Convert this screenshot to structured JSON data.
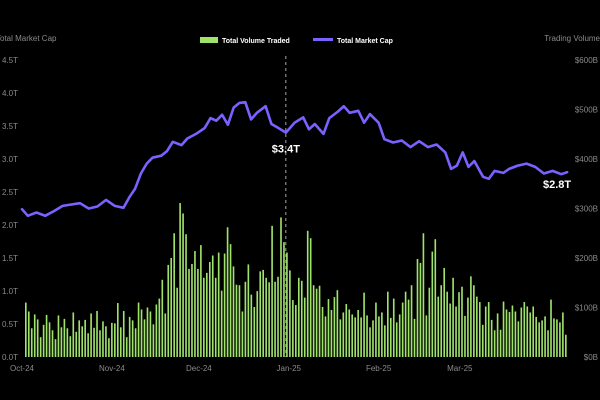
{
  "chart_data": {
    "type": "bar+line",
    "legend": [
      {
        "label": "Total Volume Traded",
        "color": "#9fe36a"
      },
      {
        "label": "Total Market Cap",
        "color": "#7b61ff"
      }
    ],
    "y_left": {
      "label": "Total Market Cap",
      "ticks": [
        "0.0T",
        "0.5T",
        "1.0T",
        "1.5T",
        "2.0T",
        "2.5T",
        "3.0T",
        "3.5T",
        "4.0T",
        "4.5T"
      ],
      "range": [
        0,
        4.5
      ]
    },
    "y_right": {
      "label": "Trading Volume",
      "ticks": [
        "$0B",
        "$100B",
        "$200B",
        "$300B",
        "$400B",
        "$500B",
        "$600B"
      ],
      "range": [
        0,
        600
      ]
    },
    "x_ticks": [
      "Oct-24",
      "Nov-24",
      "Dec-24",
      "Jan-25",
      "Feb-25",
      "Mar-25"
    ],
    "x_range": [
      "2024-10-01",
      "2025-04-08"
    ],
    "annotations": [
      {
        "text": "$3.4T",
        "date": "2024-12-31",
        "value": 3.4
      },
      {
        "text": "$2.8T",
        "date": "2025-04-07",
        "value": 2.8
      }
    ],
    "crosshair_date": "2024-12-31",
    "market_cap_series": {
      "name": "Total Market Cap",
      "color": "#7b61ff",
      "points": [
        [
          "2024-10-01",
          2.24
        ],
        [
          "2024-10-03",
          2.14
        ],
        [
          "2024-10-06",
          2.19
        ],
        [
          "2024-10-09",
          2.14
        ],
        [
          "2024-10-12",
          2.21
        ],
        [
          "2024-10-15",
          2.29
        ],
        [
          "2024-10-18",
          2.31
        ],
        [
          "2024-10-21",
          2.33
        ],
        [
          "2024-10-24",
          2.25
        ],
        [
          "2024-10-27",
          2.28
        ],
        [
          "2024-10-30",
          2.38
        ],
        [
          "2024-11-02",
          2.29
        ],
        [
          "2024-11-05",
          2.26
        ],
        [
          "2024-11-07",
          2.42
        ],
        [
          "2024-11-09",
          2.55
        ],
        [
          "2024-11-11",
          2.78
        ],
        [
          "2024-11-13",
          2.93
        ],
        [
          "2024-11-15",
          3.02
        ],
        [
          "2024-11-18",
          3.05
        ],
        [
          "2024-11-20",
          3.12
        ],
        [
          "2024-11-22",
          3.26
        ],
        [
          "2024-11-25",
          3.21
        ],
        [
          "2024-11-27",
          3.31
        ],
        [
          "2024-11-30",
          3.38
        ],
        [
          "2024-12-03",
          3.47
        ],
        [
          "2024-12-05",
          3.62
        ],
        [
          "2024-12-07",
          3.58
        ],
        [
          "2024-12-09",
          3.67
        ],
        [
          "2024-12-11",
          3.52
        ],
        [
          "2024-12-13",
          3.78
        ],
        [
          "2024-12-15",
          3.85
        ],
        [
          "2024-12-17",
          3.86
        ],
        [
          "2024-12-19",
          3.6
        ],
        [
          "2024-12-21",
          3.7
        ],
        [
          "2024-12-24",
          3.8
        ],
        [
          "2024-12-26",
          3.53
        ],
        [
          "2024-12-28",
          3.48
        ],
        [
          "2024-12-31",
          3.4
        ],
        [
          "2025-01-03",
          3.55
        ],
        [
          "2025-01-06",
          3.63
        ],
        [
          "2025-01-08",
          3.45
        ],
        [
          "2025-01-10",
          3.53
        ],
        [
          "2025-01-13",
          3.38
        ],
        [
          "2025-01-15",
          3.62
        ],
        [
          "2025-01-18",
          3.72
        ],
        [
          "2025-01-20",
          3.8
        ],
        [
          "2025-01-22",
          3.7
        ],
        [
          "2025-01-25",
          3.73
        ],
        [
          "2025-01-27",
          3.55
        ],
        [
          "2025-01-29",
          3.68
        ],
        [
          "2025-02-01",
          3.55
        ],
        [
          "2025-02-03",
          3.3
        ],
        [
          "2025-02-06",
          3.25
        ],
        [
          "2025-02-09",
          3.28
        ],
        [
          "2025-02-12",
          3.18
        ],
        [
          "2025-02-15",
          3.27
        ],
        [
          "2025-02-18",
          3.18
        ],
        [
          "2025-02-21",
          3.22
        ],
        [
          "2025-02-24",
          3.1
        ],
        [
          "2025-02-26",
          2.85
        ],
        [
          "2025-02-28",
          2.9
        ],
        [
          "2025-03-02",
          3.1
        ],
        [
          "2025-03-04",
          2.88
        ],
        [
          "2025-03-06",
          2.97
        ],
        [
          "2025-03-09",
          2.73
        ],
        [
          "2025-03-11",
          2.7
        ],
        [
          "2025-03-13",
          2.82
        ],
        [
          "2025-03-16",
          2.79
        ],
        [
          "2025-03-18",
          2.85
        ],
        [
          "2025-03-21",
          2.9
        ],
        [
          "2025-03-24",
          2.93
        ],
        [
          "2025-03-27",
          2.88
        ],
        [
          "2025-03-30",
          2.78
        ],
        [
          "2025-04-02",
          2.82
        ],
        [
          "2025-04-05",
          2.77
        ],
        [
          "2025-04-07",
          2.8
        ]
      ]
    },
    "volume_series": {
      "name": "Total Volume Traded",
      "color": "#9fe36a",
      "bar_count": 183,
      "values": [
        110,
        92,
        58,
        86,
        76,
        40,
        65,
        85,
        70,
        54,
        36,
        84,
        60,
        77,
        58,
        42,
        90,
        51,
        74,
        62,
        75,
        48,
        88,
        59,
        93,
        54,
        72,
        62,
        38,
        69,
        68,
        109,
        60,
        93,
        40,
        81,
        74,
        58,
        110,
        96,
        76,
        100,
        92,
        66,
        106,
        118,
        156,
        88,
        186,
        200,
        250,
        140,
        311,
        290,
        248,
        178,
        188,
        214,
        178,
        226,
        160,
        170,
        192,
        205,
        160,
        211,
        134,
        209,
        262,
        228,
        183,
        146,
        145,
        92,
        152,
        187,
        126,
        101,
        133,
        173,
        176,
        160,
        151,
        265,
        152,
        162,
        282,
        232,
        211,
        175,
        115,
        105,
        160,
        154,
        120,
        255,
        240,
        145,
        138,
        144,
        101,
        82,
        117,
        95,
        121,
        135,
        76,
        90,
        107,
        96,
        86,
        80,
        95,
        80,
        130,
        84,
        60,
        74,
        110,
        82,
        90,
        64,
        132,
        79,
        118,
        70,
        86,
        110,
        132,
        116,
        145,
        77,
        198,
        190,
        250,
        84,
        140,
        213,
        238,
        122,
        145,
        180,
        132,
        108,
        160,
        102,
        131,
        142,
        83,
        120,
        163,
        145,
        122,
        111,
        65,
        102,
        111,
        75,
        54,
        88,
        55,
        112,
        96,
        91,
        104,
        92,
        72,
        100,
        111,
        102,
        90,
        102,
        81,
        70,
        74,
        82,
        54,
        116,
        78,
        76,
        70,
        90,
        45
      ]
    }
  }
}
